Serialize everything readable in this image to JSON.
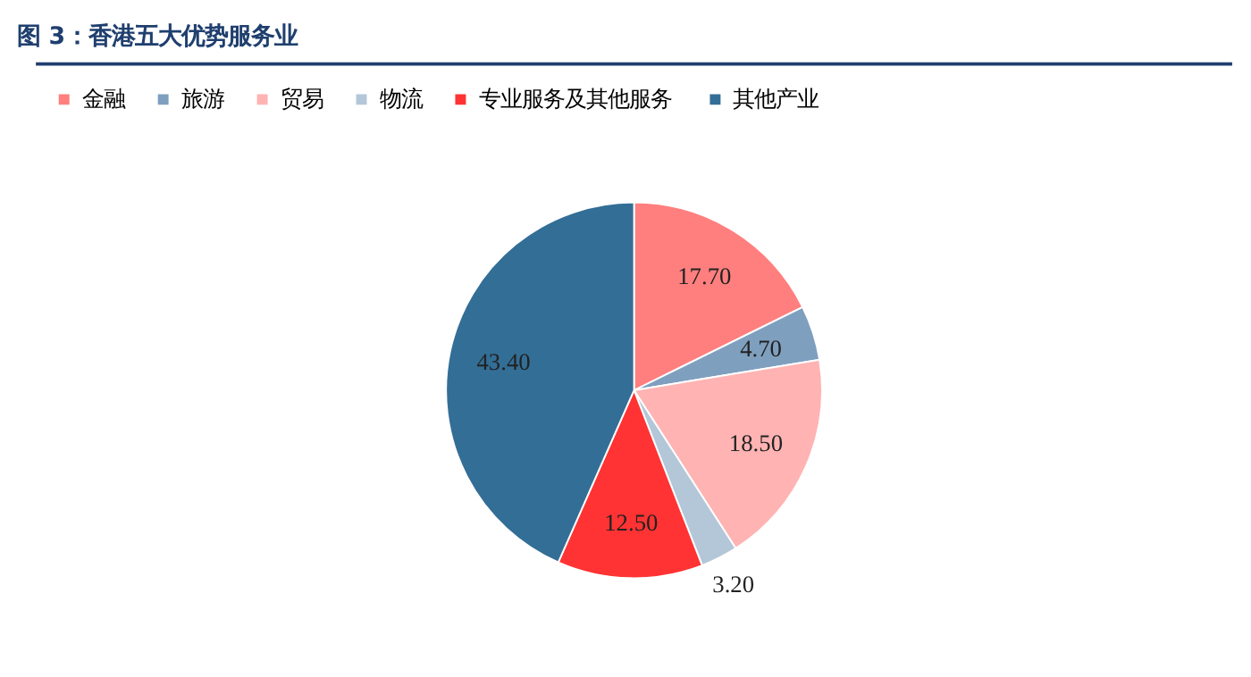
{
  "chart_data": {
    "type": "pie",
    "title": "图 3：香港五大优势服务业",
    "categories": [
      "金融",
      "旅游",
      "贸易",
      "物流",
      "专业服务及其他服务",
      "其他产业"
    ],
    "values": [
      17.7,
      4.7,
      18.5,
      3.2,
      12.5,
      43.4
    ],
    "value_labels": [
      "17.70",
      "4.70",
      "18.50",
      "3.20",
      "12.50",
      "43.40"
    ],
    "colors": [
      "#ff7f7f",
      "#7f9fbf",
      "#ffb3b3",
      "#b3c7d9",
      "#ff3333",
      "#336e96"
    ],
    "legend": "top"
  }
}
